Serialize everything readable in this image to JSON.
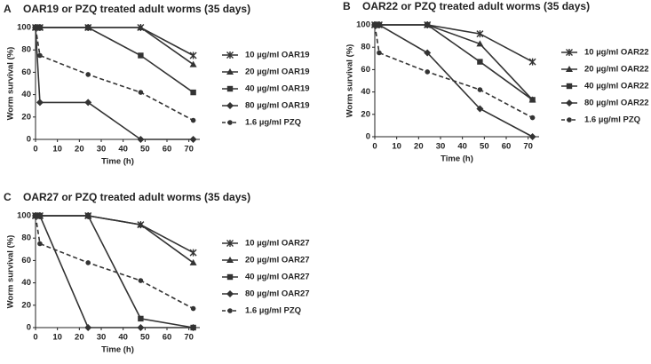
{
  "chart_data": [
    {
      "type": "line",
      "label": "A",
      "title": "OAR19 or PZQ treated adult worms (35 days)",
      "x_label": "Time (h)",
      "y_label": "Worm survival (%)",
      "x": [
        0,
        2,
        24,
        48,
        72
      ],
      "xlim": [
        0,
        75
      ],
      "xticks": [
        0,
        10,
        20,
        30,
        40,
        50,
        60,
        70
      ],
      "ylim": [
        0,
        100
      ],
      "yticks": [
        0,
        20,
        40,
        60,
        80,
        100
      ],
      "series": [
        {
          "name": "10 µg/ml OAR19",
          "color": "#333333",
          "marker": "star",
          "dashed": false,
          "values": [
            100,
            100,
            100,
            100,
            75
          ]
        },
        {
          "name": "20 µg/ml OAR19",
          "color": "#333333",
          "marker": "triangle",
          "dashed": false,
          "values": [
            100,
            100,
            100,
            100,
            67
          ]
        },
        {
          "name": "40 µg/ml OAR19",
          "color": "#333333",
          "marker": "square",
          "dashed": false,
          "values": [
            100,
            100,
            100,
            75,
            42
          ]
        },
        {
          "name": "80 µg/ml OAR19",
          "color": "#333333",
          "marker": "diamond",
          "dashed": false,
          "values": [
            100,
            33,
            33,
            0,
            0
          ]
        },
        {
          "name": "1.6 µg/ml PZQ",
          "color": "#333333",
          "marker": "circle",
          "dashed": true,
          "values": [
            100,
            75,
            58,
            42,
            17
          ]
        }
      ]
    },
    {
      "type": "line",
      "label": "B",
      "title": "OAR22 or PZQ treated adult worms (35 days)",
      "x_label": "Time (h)",
      "y_label": "Worm survival (%)",
      "x": [
        0,
        2,
        24,
        48,
        72
      ],
      "xlim": [
        0,
        75
      ],
      "xticks": [
        0,
        10,
        20,
        30,
        40,
        50,
        60,
        70
      ],
      "ylim": [
        0,
        100
      ],
      "yticks": [
        0,
        20,
        40,
        60,
        80,
        100
      ],
      "series": [
        {
          "name": "10 µg/ml OAR22",
          "color": "#333333",
          "marker": "star",
          "dashed": false,
          "values": [
            100,
            100,
            100,
            92,
            67
          ]
        },
        {
          "name": "20 µg/ml OAR22",
          "color": "#333333",
          "marker": "triangle",
          "dashed": false,
          "values": [
            100,
            100,
            100,
            83,
            33
          ]
        },
        {
          "name": "40 µg/ml OAR22",
          "color": "#333333",
          "marker": "square",
          "dashed": false,
          "values": [
            100,
            100,
            100,
            67,
            33
          ]
        },
        {
          "name": "80 µg/ml OAR22",
          "color": "#333333",
          "marker": "diamond",
          "dashed": false,
          "values": [
            100,
            100,
            75,
            25,
            0
          ]
        },
        {
          "name": "1.6 µg/ml PZQ",
          "color": "#333333",
          "marker": "circle",
          "dashed": true,
          "values": [
            100,
            75,
            58,
            42,
            17
          ]
        }
      ]
    },
    {
      "type": "line",
      "label": "C",
      "title": "OAR27 or PZQ treated adult worms (35 days)",
      "x_label": "Time (h)",
      "y_label": "Worm survival (%)",
      "x": [
        0,
        2,
        24,
        48,
        72
      ],
      "xlim": [
        0,
        75
      ],
      "xticks": [
        0,
        10,
        20,
        30,
        40,
        50,
        60,
        70
      ],
      "ylim": [
        0,
        100
      ],
      "yticks": [
        0,
        20,
        40,
        60,
        80,
        100
      ],
      "series": [
        {
          "name": "10 µg/ml OAR27",
          "color": "#333333",
          "marker": "star",
          "dashed": false,
          "values": [
            100,
            100,
            100,
            92,
            67
          ]
        },
        {
          "name": "20 µg/ml OAR27",
          "color": "#333333",
          "marker": "triangle",
          "dashed": false,
          "values": [
            100,
            100,
            100,
            92,
            58
          ]
        },
        {
          "name": "40 µg/ml OAR27",
          "color": "#333333",
          "marker": "square",
          "dashed": false,
          "values": [
            100,
            100,
            100,
            8,
            0
          ]
        },
        {
          "name": "80 µg/ml OAR27",
          "color": "#333333",
          "marker": "diamond",
          "dashed": false,
          "values": [
            100,
            100,
            0,
            0,
            0
          ]
        },
        {
          "name": "1.6 µg/ml PZQ",
          "color": "#333333",
          "marker": "circle",
          "dashed": true,
          "values": [
            100,
            75,
            58,
            42,
            17
          ]
        }
      ]
    }
  ]
}
